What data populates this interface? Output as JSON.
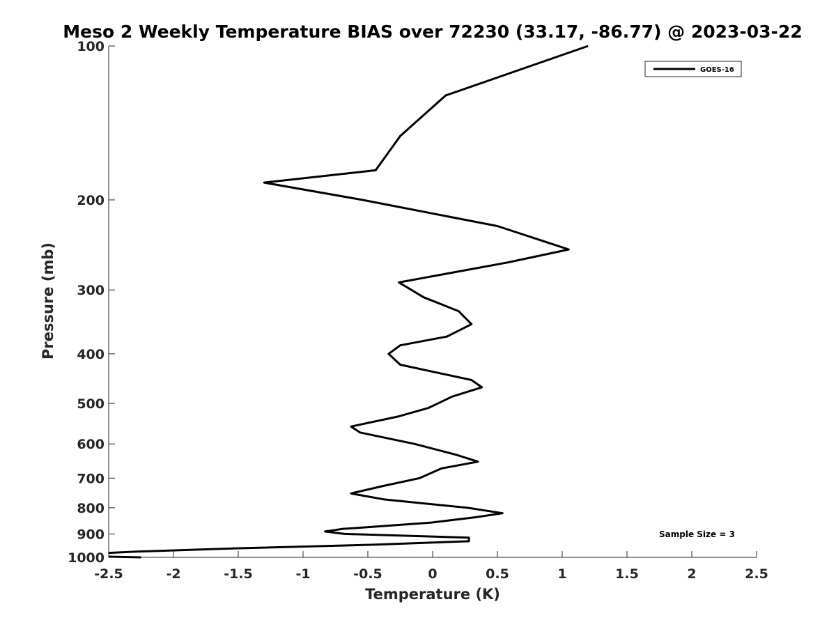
{
  "chart_data": {
    "type": "line",
    "title": "Meso 2 Weekly Temperature BIAS over 72230 (33.17, -86.77) @ 2023-03-22",
    "xlabel": "Temperature (K)",
    "ylabel": "Pressure (mb)",
    "xlim": [
      -2.5,
      2.5
    ],
    "ylim": [
      100,
      1000
    ],
    "y_scale": "log",
    "y_reversed": true,
    "x_ticks": [
      "-2.5",
      "-2",
      "-1.5",
      "-1",
      "-0.5",
      "0",
      "0.5",
      "1",
      "1.5",
      "2",
      "2.5"
    ],
    "y_ticks": [
      "100",
      "200",
      "300",
      "400",
      "500",
      "600",
      "700",
      "800",
      "900",
      "1000"
    ],
    "grid": false,
    "legend_position": "top-right",
    "series": [
      {
        "name": "GOES-16",
        "color": "#000000",
        "points": [
          [
            1.2,
            100
          ],
          [
            0.1,
            125
          ],
          [
            -0.25,
            150
          ],
          [
            -0.44,
            175
          ],
          [
            -1.3,
            185
          ],
          [
            -0.54,
            200
          ],
          [
            0.5,
            225
          ],
          [
            1.05,
            250
          ],
          [
            0.58,
            265
          ],
          [
            -0.26,
            290
          ],
          [
            -0.07,
            310
          ],
          [
            0.2,
            330
          ],
          [
            0.3,
            350
          ],
          [
            0.11,
            370
          ],
          [
            -0.25,
            385
          ],
          [
            -0.34,
            400
          ],
          [
            -0.25,
            420
          ],
          [
            0.3,
            450
          ],
          [
            0.38,
            465
          ],
          [
            0.15,
            485
          ],
          [
            -0.03,
            510
          ],
          [
            -0.26,
            530
          ],
          [
            -0.63,
            555
          ],
          [
            -0.56,
            570
          ],
          [
            -0.14,
            600
          ],
          [
            0.18,
            630
          ],
          [
            0.35,
            650
          ],
          [
            0.07,
            670
          ],
          [
            -0.1,
            700
          ],
          [
            -0.38,
            725
          ],
          [
            -0.63,
            750
          ],
          [
            -0.38,
            770
          ],
          [
            0.27,
            800
          ],
          [
            0.54,
            820
          ],
          [
            0.33,
            835
          ],
          [
            -0.01,
            855
          ],
          [
            -0.7,
            880
          ],
          [
            -0.83,
            890
          ],
          [
            -0.68,
            900
          ],
          [
            0.28,
            915
          ],
          [
            0.28,
            930
          ],
          [
            -0.48,
            945
          ],
          [
            -1.5,
            960
          ],
          [
            -2.3,
            975
          ],
          [
            -2.5,
            980
          ]
        ]
      },
      {
        "color": "#000000",
        "points": [
          [
            -2.5,
            997
          ],
          [
            -2.25,
            1000
          ]
        ]
      }
    ],
    "annotations": [
      "Sample Size = 3"
    ]
  }
}
